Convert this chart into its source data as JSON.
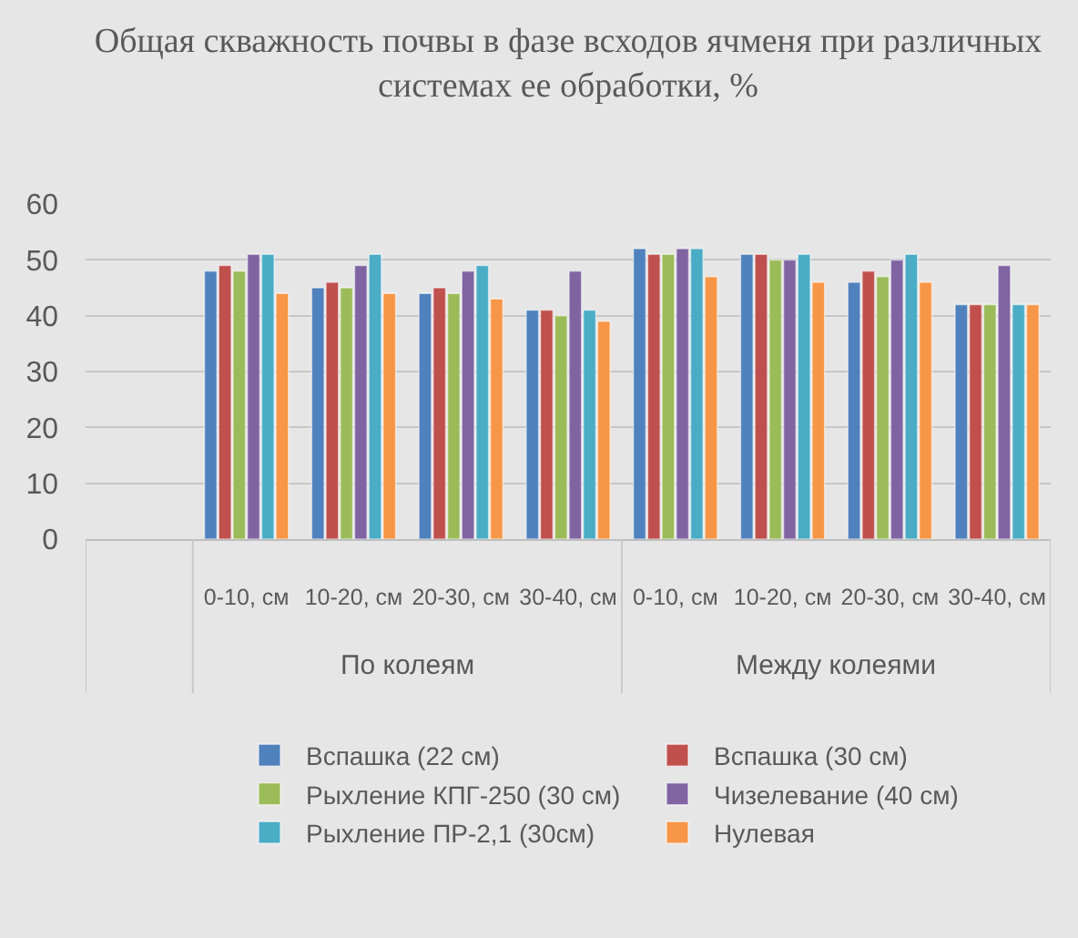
{
  "chart_data": {
    "type": "bar",
    "title": "Общая скважность почвы в фазе всходов ячменя при различных системах ее обработки, %",
    "categories": [
      null,
      "0-10, см",
      "10-20, см",
      "20-30, см",
      "30-40, см",
      "0-10, см",
      "10-20, см",
      "20-30, см",
      "30-40, см"
    ],
    "annotations": [
      "По колеям",
      "Между колеями"
    ],
    "series": [
      {
        "name": "Вспашка (22 см)",
        "color": "#4f81bd",
        "values": [
          null,
          48,
          45,
          44,
          41,
          52,
          51,
          46,
          42
        ]
      },
      {
        "name": "Вспашка (30 см)",
        "color": "#c0504d",
        "values": [
          null,
          49,
          46,
          45,
          41,
          51,
          51,
          48,
          42
        ]
      },
      {
        "name": "Рыхление КПГ-250 (30 см)",
        "color": "#9bbb59",
        "values": [
          null,
          48,
          45,
          44,
          40,
          51,
          50,
          47,
          42
        ]
      },
      {
        "name": "Чизелевание (40 см)",
        "color": "#8064a2",
        "values": [
          null,
          51,
          49,
          48,
          48,
          52,
          50,
          50,
          49
        ]
      },
      {
        "name": "Рыхление ПР-2,1 (30см)",
        "color": "#4bacc6",
        "values": [
          null,
          51,
          51,
          49,
          41,
          52,
          51,
          51,
          42
        ]
      },
      {
        "name": "Нулевая",
        "color": "#f79646",
        "values": [
          null,
          44,
          44,
          43,
          39,
          47,
          46,
          46,
          42
        ]
      }
    ],
    "ylim": [
      0,
      60
    ],
    "yticks": [
      0,
      10,
      20,
      30,
      40,
      50,
      60
    ],
    "grid": "y",
    "legend": "bottom"
  }
}
